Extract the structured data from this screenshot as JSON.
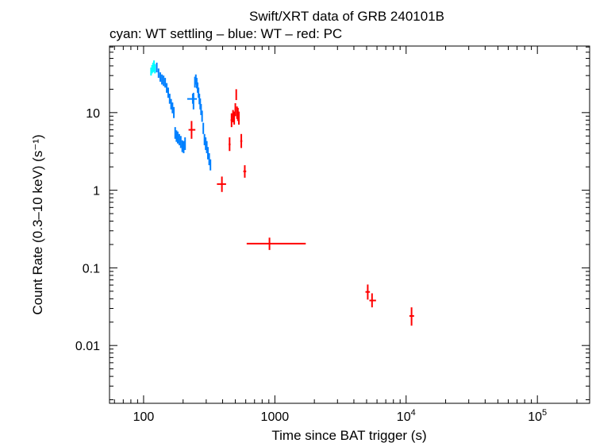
{
  "chart_data": {
    "type": "scatter",
    "title": "Swift/XRT data of GRB 240101B",
    "subtitle": "cyan: WT settling – blue: WT – red: PC",
    "xlabel": "Time since BAT trigger (s)",
    "ylabel": "Count Rate (0.3–10 keV) (s⁻¹)",
    "xscale": "log",
    "yscale": "log",
    "xlim": [
      55,
      250000
    ],
    "ylim": [
      0.0018,
      72
    ],
    "x_ticks": [
      {
        "value": 100,
        "label": "100",
        "base": "100",
        "exp": ""
      },
      {
        "value": 1000,
        "label": "1000",
        "base": "1000",
        "exp": ""
      },
      {
        "value": 10000,
        "label": "10^4",
        "base": "10",
        "exp": "4"
      },
      {
        "value": 100000,
        "label": "10^5",
        "base": "10",
        "exp": "5"
      }
    ],
    "y_ticks": [
      {
        "value": 0.01,
        "label": "0.01"
      },
      {
        "value": 0.1,
        "label": "0.1"
      },
      {
        "value": 1,
        "label": "1"
      },
      {
        "value": 10,
        "label": "10"
      }
    ],
    "series": [
      {
        "name": "WT settling",
        "color": "#00ffff",
        "points": [
          {
            "x": 114,
            "xlo": 113,
            "xhi": 115,
            "y": 34,
            "ylo": 30,
            "yhi": 38
          },
          {
            "x": 116,
            "xlo": 115,
            "xhi": 117,
            "y": 36,
            "ylo": 32,
            "yhi": 41
          },
          {
            "x": 118,
            "xlo": 117,
            "xhi": 119,
            "y": 38,
            "ylo": 33,
            "yhi": 44
          },
          {
            "x": 120,
            "xlo": 119,
            "xhi": 121,
            "y": 40,
            "ylo": 34,
            "yhi": 47
          },
          {
            "x": 122,
            "xlo": 121,
            "xhi": 123,
            "y": 37,
            "ylo": 32,
            "yhi": 42
          }
        ]
      },
      {
        "name": "WT",
        "color": "#0080ff",
        "points": [
          {
            "x": 126,
            "xlo": 125,
            "xhi": 127,
            "y": 38,
            "ylo": 33,
            "yhi": 44
          },
          {
            "x": 130,
            "xlo": 129,
            "xhi": 131,
            "y": 32,
            "ylo": 28,
            "yhi": 37
          },
          {
            "x": 134,
            "xlo": 133,
            "xhi": 135,
            "y": 29,
            "ylo": 25,
            "yhi": 33
          },
          {
            "x": 138,
            "xlo": 137,
            "xhi": 139,
            "y": 27,
            "ylo": 23,
            "yhi": 31
          },
          {
            "x": 142,
            "xlo": 141,
            "xhi": 143,
            "y": 26,
            "ylo": 22,
            "yhi": 30
          },
          {
            "x": 146,
            "xlo": 145,
            "xhi": 147,
            "y": 24,
            "ylo": 21,
            "yhi": 28
          },
          {
            "x": 150,
            "xlo": 149,
            "xhi": 151,
            "y": 21,
            "ylo": 18,
            "yhi": 24
          },
          {
            "x": 154,
            "xlo": 153,
            "xhi": 155,
            "y": 18,
            "ylo": 15.5,
            "yhi": 21
          },
          {
            "x": 158,
            "xlo": 157,
            "xhi": 159,
            "y": 15,
            "ylo": 13,
            "yhi": 17.5
          },
          {
            "x": 162,
            "xlo": 161,
            "xhi": 163,
            "y": 13,
            "ylo": 11,
            "yhi": 15
          },
          {
            "x": 166,
            "xlo": 165,
            "xhi": 167,
            "y": 11.5,
            "ylo": 9.8,
            "yhi": 13.5
          },
          {
            "x": 170,
            "xlo": 169,
            "xhi": 171,
            "y": 10,
            "ylo": 8.5,
            "yhi": 11.8
          },
          {
            "x": 174,
            "xlo": 173,
            "xhi": 175,
            "y": 5.5,
            "ylo": 4.6,
            "yhi": 6.5
          },
          {
            "x": 178,
            "xlo": 177,
            "xhi": 179,
            "y": 5,
            "ylo": 4.2,
            "yhi": 5.9
          },
          {
            "x": 182,
            "xlo": 181,
            "xhi": 183,
            "y": 4.8,
            "ylo": 4,
            "yhi": 5.7
          },
          {
            "x": 187,
            "xlo": 185,
            "xhi": 189,
            "y": 4.5,
            "ylo": 3.8,
            "yhi": 5.3
          },
          {
            "x": 192,
            "xlo": 190,
            "xhi": 194,
            "y": 4.2,
            "ylo": 3.5,
            "yhi": 5
          },
          {
            "x": 197,
            "xlo": 195,
            "xhi": 199,
            "y": 3.7,
            "ylo": 3.1,
            "yhi": 4.4
          },
          {
            "x": 202,
            "xlo": 200,
            "xhi": 204,
            "y": 3.6,
            "ylo": 3,
            "yhi": 4.3
          },
          {
            "x": 207,
            "xlo": 205,
            "xhi": 209,
            "y": 4,
            "ylo": 3.3,
            "yhi": 4.8
          },
          {
            "x": 237,
            "xlo": 215,
            "xhi": 255,
            "y": 15,
            "ylo": 13,
            "yhi": 17.5
          },
          {
            "x": 240,
            "xlo": 238,
            "xhi": 242,
            "y": 14,
            "ylo": 11,
            "yhi": 18
          },
          {
            "x": 246,
            "xlo": 244,
            "xhi": 248,
            "y": 25,
            "ylo": 21,
            "yhi": 29
          },
          {
            "x": 250,
            "xlo": 248,
            "xhi": 252,
            "y": 27,
            "ylo": 23,
            "yhi": 31
          },
          {
            "x": 254,
            "xlo": 252,
            "xhi": 256,
            "y": 24,
            "ylo": 20.5,
            "yhi": 28
          },
          {
            "x": 258,
            "xlo": 256,
            "xhi": 260,
            "y": 21,
            "ylo": 18,
            "yhi": 24.5
          },
          {
            "x": 262,
            "xlo": 260,
            "xhi": 264,
            "y": 18,
            "ylo": 15.5,
            "yhi": 21
          },
          {
            "x": 266,
            "xlo": 264,
            "xhi": 268,
            "y": 15,
            "ylo": 12.8,
            "yhi": 17.5
          },
          {
            "x": 270,
            "xlo": 268,
            "xhi": 272,
            "y": 13,
            "ylo": 11,
            "yhi": 15.2
          },
          {
            "x": 274,
            "xlo": 272,
            "xhi": 276,
            "y": 11,
            "ylo": 9.3,
            "yhi": 12.9
          },
          {
            "x": 279,
            "xlo": 277,
            "xhi": 281,
            "y": 9,
            "ylo": 7.6,
            "yhi": 10.6
          },
          {
            "x": 285,
            "xlo": 282,
            "xhi": 288,
            "y": 6.3,
            "ylo": 5.3,
            "yhi": 7.4
          },
          {
            "x": 291,
            "xlo": 288,
            "xhi": 294,
            "y": 4.5,
            "ylo": 3.8,
            "yhi": 5.3
          },
          {
            "x": 297,
            "xlo": 294,
            "xhi": 300,
            "y": 4,
            "ylo": 3.3,
            "yhi": 4.8
          },
          {
            "x": 303,
            "xlo": 300,
            "xhi": 306,
            "y": 3.6,
            "ylo": 3,
            "yhi": 4.3
          },
          {
            "x": 309,
            "xlo": 306,
            "xhi": 312,
            "y": 3,
            "ylo": 2.5,
            "yhi": 3.6
          },
          {
            "x": 316,
            "xlo": 313,
            "xhi": 319,
            "y": 2.5,
            "ylo": 2.1,
            "yhi": 3
          },
          {
            "x": 323,
            "xlo": 320,
            "xhi": 326,
            "y": 2.1,
            "ylo": 1.8,
            "yhi": 2.5
          }
        ]
      },
      {
        "name": "PC",
        "color": "#ff0000",
        "points": [
          {
            "x": 232,
            "xlo": 220,
            "xhi": 248,
            "y": 6,
            "ylo": 4.6,
            "yhi": 7.8
          },
          {
            "x": 395,
            "xlo": 362,
            "xhi": 425,
            "y": 1.2,
            "ylo": 0.95,
            "yhi": 1.5
          },
          {
            "x": 452,
            "xlo": 445,
            "xhi": 460,
            "y": 3.9,
            "ylo": 3.2,
            "yhi": 4.8
          },
          {
            "x": 468,
            "xlo": 460,
            "xhi": 475,
            "y": 8,
            "ylo": 6.5,
            "yhi": 9.8
          },
          {
            "x": 480,
            "xlo": 475,
            "xhi": 485,
            "y": 9,
            "ylo": 7.5,
            "yhi": 10.8
          },
          {
            "x": 490,
            "xlo": 485,
            "xhi": 495,
            "y": 8.5,
            "ylo": 7,
            "yhi": 10.3
          },
          {
            "x": 500,
            "xlo": 495,
            "xhi": 505,
            "y": 11,
            "ylo": 9,
            "yhi": 13.2
          },
          {
            "x": 508,
            "xlo": 505,
            "xhi": 512,
            "y": 17,
            "ylo": 14.5,
            "yhi": 20
          },
          {
            "x": 515,
            "xlo": 512,
            "xhi": 518,
            "y": 10,
            "ylo": 8.3,
            "yhi": 12
          },
          {
            "x": 523,
            "xlo": 518,
            "xhi": 528,
            "y": 9.5,
            "ylo": 7.8,
            "yhi": 11.5
          },
          {
            "x": 532,
            "xlo": 528,
            "xhi": 536,
            "y": 8.5,
            "ylo": 7,
            "yhi": 10.3
          },
          {
            "x": 555,
            "xlo": 545,
            "xhi": 565,
            "y": 4.3,
            "ylo": 3.5,
            "yhi": 5.3
          },
          {
            "x": 590,
            "xlo": 575,
            "xhi": 605,
            "y": 1.75,
            "ylo": 1.45,
            "yhi": 2.1
          },
          {
            "x": 910,
            "xlo": 610,
            "xhi": 1720,
            "y": 0.205,
            "ylo": 0.17,
            "yhi": 0.245
          },
          {
            "x": 5100,
            "xlo": 4900,
            "xhi": 5300,
            "y": 0.049,
            "ylo": 0.039,
            "yhi": 0.061
          },
          {
            "x": 5500,
            "xlo": 5250,
            "xhi": 5900,
            "y": 0.038,
            "ylo": 0.031,
            "yhi": 0.047
          },
          {
            "x": 11000,
            "xlo": 10600,
            "xhi": 11500,
            "y": 0.024,
            "ylo": 0.018,
            "yhi": 0.031
          }
        ]
      }
    ]
  }
}
